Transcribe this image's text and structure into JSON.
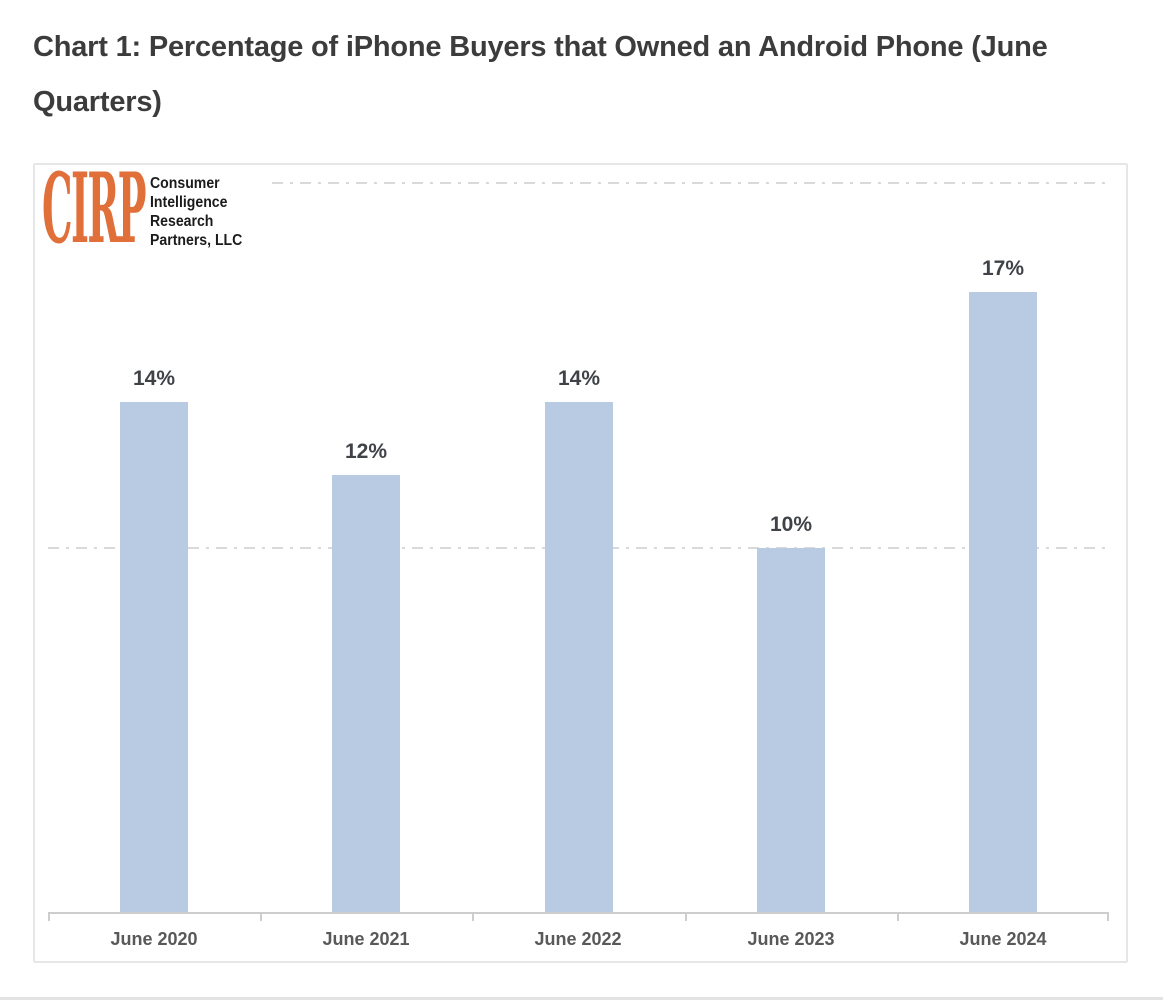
{
  "page": {
    "title": "Chart 1: Percentage of iPhone Buyers that Owned an Android Phone (June Quarters)"
  },
  "logo": {
    "brand": "CIRP",
    "lines": [
      "Consumer",
      "Intelligence",
      "Research",
      "Partners, LLC"
    ]
  },
  "chart_data": {
    "type": "bar",
    "title": "Percentage of iPhone Buyers that Owned an Android Phone (June Quarters)",
    "categories": [
      "June 2020",
      "June 2021",
      "June 2022",
      "June 2023",
      "June 2024"
    ],
    "values": [
      14,
      12,
      14,
      10,
      17
    ],
    "data_labels": [
      "14%",
      "12%",
      "14%",
      "10%",
      "17%"
    ],
    "xlabel": "",
    "ylabel": "",
    "ylim": [
      0,
      20.5
    ],
    "gridlines_pct": [
      10,
      20
    ],
    "grid_style": "dash-dot",
    "legend": "none",
    "colors": {
      "bar_fill": "#b8cbe3",
      "grid_line": "#d9d9d9",
      "axis_line": "#cdcdcd",
      "data_label": "#3f4247",
      "category_label": "#595959",
      "title_text": "#3c3c3c",
      "logo_orange": "#e06f3a",
      "panel_border": "#e6e6e6"
    }
  }
}
